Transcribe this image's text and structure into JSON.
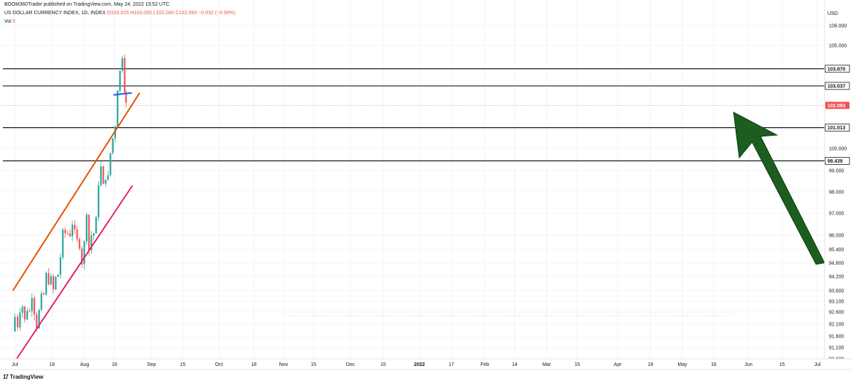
{
  "header": {
    "publisher": "BOOM360Trader published on TradingView.com, May 24, 2022 15:52 UTC",
    "symbol": "US DOLLAR CURRENCY INDEX, 1D, INDEX",
    "ohlc": "O103.025 H103.050 L102.040 C102.093 −0.932 (−0.90%)",
    "vol_label": "Vol",
    "vol_value": "0"
  },
  "footer": {
    "brand": "TradingView",
    "logo": "17"
  },
  "currency": "USD",
  "colors": {
    "up": "#26a69a",
    "down": "#ef5350",
    "channel_upper": "#e65100",
    "channel_lower": "#e91e63",
    "neckline": "#2962ff",
    "arrow": "#1b5e20",
    "level": "#131722"
  },
  "chart_data": {
    "type": "candlestick",
    "symbol": "US DOLLAR CURRENCY INDEX",
    "timeframe": "1D",
    "x_labels": [
      "Jul",
      "19",
      "Aug",
      "16",
      "Sep",
      "15",
      "Oct",
      "18",
      "Nov",
      "15",
      "Dec",
      "15",
      "2022",
      "17",
      "Feb",
      "14",
      "Mar",
      "15",
      "Apr",
      "18",
      "May",
      "16",
      "Jun",
      "15",
      "Jul"
    ],
    "y_ticks": [
      "106.000",
      "105.000",
      "100.000",
      "99.000",
      "98.000",
      "97.000",
      "96.000",
      "95.400",
      "94.800",
      "94.200",
      "93.600",
      "93.100",
      "92.600",
      "92.100",
      "91.600",
      "91.100",
      "90.600"
    ],
    "ylim": [
      90.6,
      106.0
    ],
    "y_scale": "log",
    "horizontal_levels": [
      {
        "price": 103.87,
        "label": "103.870"
      },
      {
        "price": 103.037,
        "label": "103.037"
      },
      {
        "price": 101.013,
        "label": "101.013"
      },
      {
        "price": 99.439,
        "label": "99.439"
      }
    ],
    "last_price": {
      "price": 102.093,
      "label": "102.093"
    },
    "trendlines": [
      {
        "name": "upper channel",
        "from": [
          "2021-06-25",
          93.6
        ],
        "to": [
          "2022-07-03",
          102.7
        ]
      },
      {
        "name": "lower channel",
        "from": [
          "2021-07-06",
          90.6
        ],
        "to": [
          "2022-06-12",
          98.3
        ]
      },
      {
        "name": "neckline",
        "from": [
          "2022-04-17",
          102.6
        ],
        "to": [
          "2022-06-10",
          102.7
        ]
      }
    ],
    "closes": [
      {
        "date": "2021-06-25",
        "close": 91.8
      },
      {
        "date": "2021-07-01",
        "close": 92.4
      },
      {
        "date": "2021-07-09",
        "close": 92.1
      },
      {
        "date": "2021-07-16",
        "close": 92.8
      },
      {
        "date": "2021-07-23",
        "close": 92.9
      },
      {
        "date": "2021-07-30",
        "close": 92.2
      },
      {
        "date": "2021-08-06",
        "close": 92.8
      },
      {
        "date": "2021-08-13",
        "close": 92.6
      },
      {
        "date": "2021-08-20",
        "close": 93.5
      },
      {
        "date": "2021-08-27",
        "close": 92.7
      },
      {
        "date": "2021-09-03",
        "close": 92.1
      },
      {
        "date": "2021-09-10",
        "close": 92.6
      },
      {
        "date": "2021-09-17",
        "close": 93.2
      },
      {
        "date": "2021-09-24",
        "close": 93.4
      },
      {
        "date": "2021-10-01",
        "close": 94.2
      },
      {
        "date": "2021-10-08",
        "close": 94.1
      },
      {
        "date": "2021-10-15",
        "close": 94.0
      },
      {
        "date": "2021-10-22",
        "close": 93.6
      },
      {
        "date": "2021-10-29",
        "close": 94.1
      },
      {
        "date": "2021-11-05",
        "close": 94.3
      },
      {
        "date": "2021-11-12",
        "close": 95.1
      },
      {
        "date": "2021-11-19",
        "close": 96.0
      },
      {
        "date": "2021-11-26",
        "close": 96.1
      },
      {
        "date": "2021-12-03",
        "close": 96.1
      },
      {
        "date": "2021-12-10",
        "close": 96.1
      },
      {
        "date": "2021-12-17",
        "close": 96.6
      },
      {
        "date": "2021-12-24",
        "close": 96.0
      },
      {
        "date": "2021-12-31",
        "close": 95.7
      },
      {
        "date": "2022-01-07",
        "close": 95.7
      },
      {
        "date": "2022-01-14",
        "close": 94.9
      },
      {
        "date": "2022-01-21",
        "close": 95.6
      },
      {
        "date": "2022-01-28",
        "close": 97.2
      },
      {
        "date": "2022-02-04",
        "close": 95.4
      },
      {
        "date": "2022-02-11",
        "close": 96.0
      },
      {
        "date": "2022-02-18",
        "close": 96.1
      },
      {
        "date": "2022-02-25",
        "close": 96.6
      },
      {
        "date": "2022-03-04",
        "close": 98.5
      },
      {
        "date": "2022-03-11",
        "close": 99.1
      },
      {
        "date": "2022-03-18",
        "close": 98.2
      },
      {
        "date": "2022-03-25",
        "close": 98.8
      },
      {
        "date": "2022-04-01",
        "close": 98.6
      },
      {
        "date": "2022-04-08",
        "close": 99.8
      },
      {
        "date": "2022-04-15",
        "close": 100.5
      },
      {
        "date": "2022-04-22",
        "close": 101.2
      },
      {
        "date": "2022-04-29",
        "close": 103.0
      },
      {
        "date": "2022-05-06",
        "close": 103.7
      },
      {
        "date": "2022-05-13",
        "close": 104.6
      },
      {
        "date": "2022-05-20",
        "close": 103.0
      },
      {
        "date": "2022-05-24",
        "close": 102.093
      }
    ]
  }
}
